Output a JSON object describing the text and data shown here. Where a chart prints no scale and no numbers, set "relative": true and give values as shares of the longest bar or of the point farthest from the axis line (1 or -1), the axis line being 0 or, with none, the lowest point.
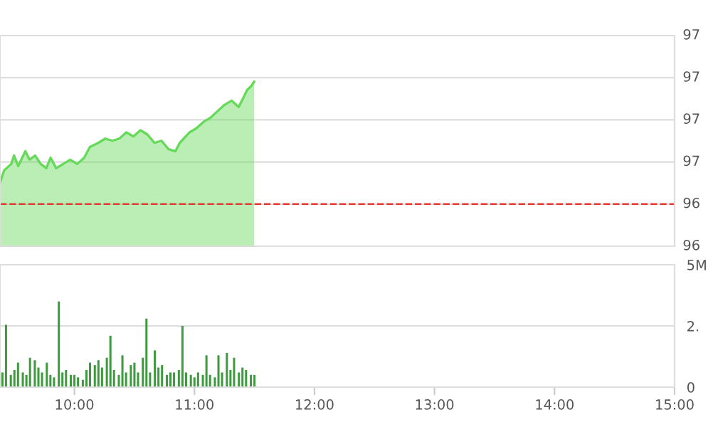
{
  "chart_data": [
    {
      "type": "area",
      "x": [
        9.38,
        9.415,
        9.474,
        9.497,
        9.532,
        9.591,
        9.626,
        9.673,
        9.719,
        9.766,
        9.801,
        9.848,
        9.906,
        9.965,
        10.023,
        10.082,
        10.129,
        10.199,
        10.257,
        10.316,
        10.374,
        10.433,
        10.491,
        10.55,
        10.608,
        10.667,
        10.725,
        10.784,
        10.842,
        10.877,
        10.959,
        11.018,
        11.076,
        11.135,
        11.193,
        11.251,
        11.31,
        11.368,
        11.404,
        11.439,
        11.474,
        11.497
      ],
      "series": [
        {
          "color": "#66d95a",
          "values": [
            0.385,
            0.462,
            0.5,
            0.551,
            0.487,
            0.577,
            0.526,
            0.551,
            0.5,
            0.474,
            0.538,
            0.474,
            0.5,
            0.526,
            0.5,
            0.538,
            0.603,
            0.628,
            0.654,
            0.641,
            0.654,
            0.692,
            0.667,
            0.705,
            0.679,
            0.628,
            0.641,
            0.59,
            0.577,
            0.628,
            0.692,
            0.718,
            0.756,
            0.782,
            0.821,
            0.859,
            0.885,
            0.846,
            0.897,
            0.949,
            0.974,
            1.0
          ]
        }
      ],
      "relative": true,
      "xlim": [
        9.38,
        15.0
      ],
      "ref_lines": [
        {
          "axis": "y",
          "value": 0.256,
          "color": "#e53935",
          "line_style": "dashed"
        }
      ],
      "annotations": [
        "97",
        "97",
        "97",
        "97",
        "96",
        "96"
      ],
      "grid": "y"
    },
    {
      "type": "bar",
      "x": [
        9.4,
        9.43,
        9.47,
        9.5,
        9.53,
        9.57,
        9.6,
        9.63,
        9.67,
        9.7,
        9.73,
        9.77,
        9.8,
        9.83,
        9.87,
        9.9,
        9.93,
        9.97,
        10.0,
        10.03,
        10.07,
        10.1,
        10.13,
        10.17,
        10.2,
        10.23,
        10.27,
        10.3,
        10.33,
        10.37,
        10.4,
        10.43,
        10.47,
        10.5,
        10.53,
        10.57,
        10.6,
        10.63,
        10.67,
        10.7,
        10.73,
        10.77,
        10.8,
        10.83,
        10.87,
        10.9,
        10.93,
        10.97,
        11.0,
        11.03,
        11.07,
        11.1,
        11.13,
        11.17,
        11.2,
        11.23,
        11.27,
        11.3,
        11.33,
        11.37,
        11.4,
        11.43,
        11.47,
        11.5
      ],
      "series": [
        {
          "color": "#3f9a3f",
          "values": [
            0.6,
            2.55,
            0.5,
            0.7,
            1.0,
            0.6,
            0.5,
            1.2,
            1.1,
            0.8,
            0.6,
            1.0,
            0.5,
            0.4,
            3.5,
            0.6,
            0.7,
            0.5,
            0.5,
            0.4,
            0.3,
            0.7,
            1.0,
            0.9,
            1.1,
            0.8,
            1.2,
            2.1,
            0.7,
            0.5,
            1.3,
            0.6,
            0.9,
            1.0,
            0.6,
            1.2,
            2.8,
            0.6,
            1.5,
            0.8,
            0.9,
            0.5,
            0.6,
            0.6,
            0.7,
            2.5,
            0.6,
            0.5,
            0.4,
            0.6,
            0.5,
            1.3,
            0.5,
            0.4,
            1.3,
            0.6,
            1.4,
            0.7,
            1.2,
            0.6,
            0.8,
            0.7,
            0.5,
            0.5
          ]
        }
      ],
      "xlim": [
        9.38,
        15.0
      ],
      "ylim": [
        0,
        5
      ],
      "xticks": [
        {
          "value": 10,
          "label": "10:00"
        },
        {
          "value": 11,
          "label": "11:00"
        },
        {
          "value": 12,
          "label": "12:00"
        },
        {
          "value": 13,
          "label": "13:00"
        },
        {
          "value": 14,
          "label": "14:00"
        },
        {
          "value": 15,
          "label": "15:00"
        }
      ],
      "yticks": [
        0,
        {
          "value": 2.5,
          "label": "2."
        },
        {
          "value": 5,
          "label": "5M"
        }
      ],
      "grid": "y"
    }
  ]
}
